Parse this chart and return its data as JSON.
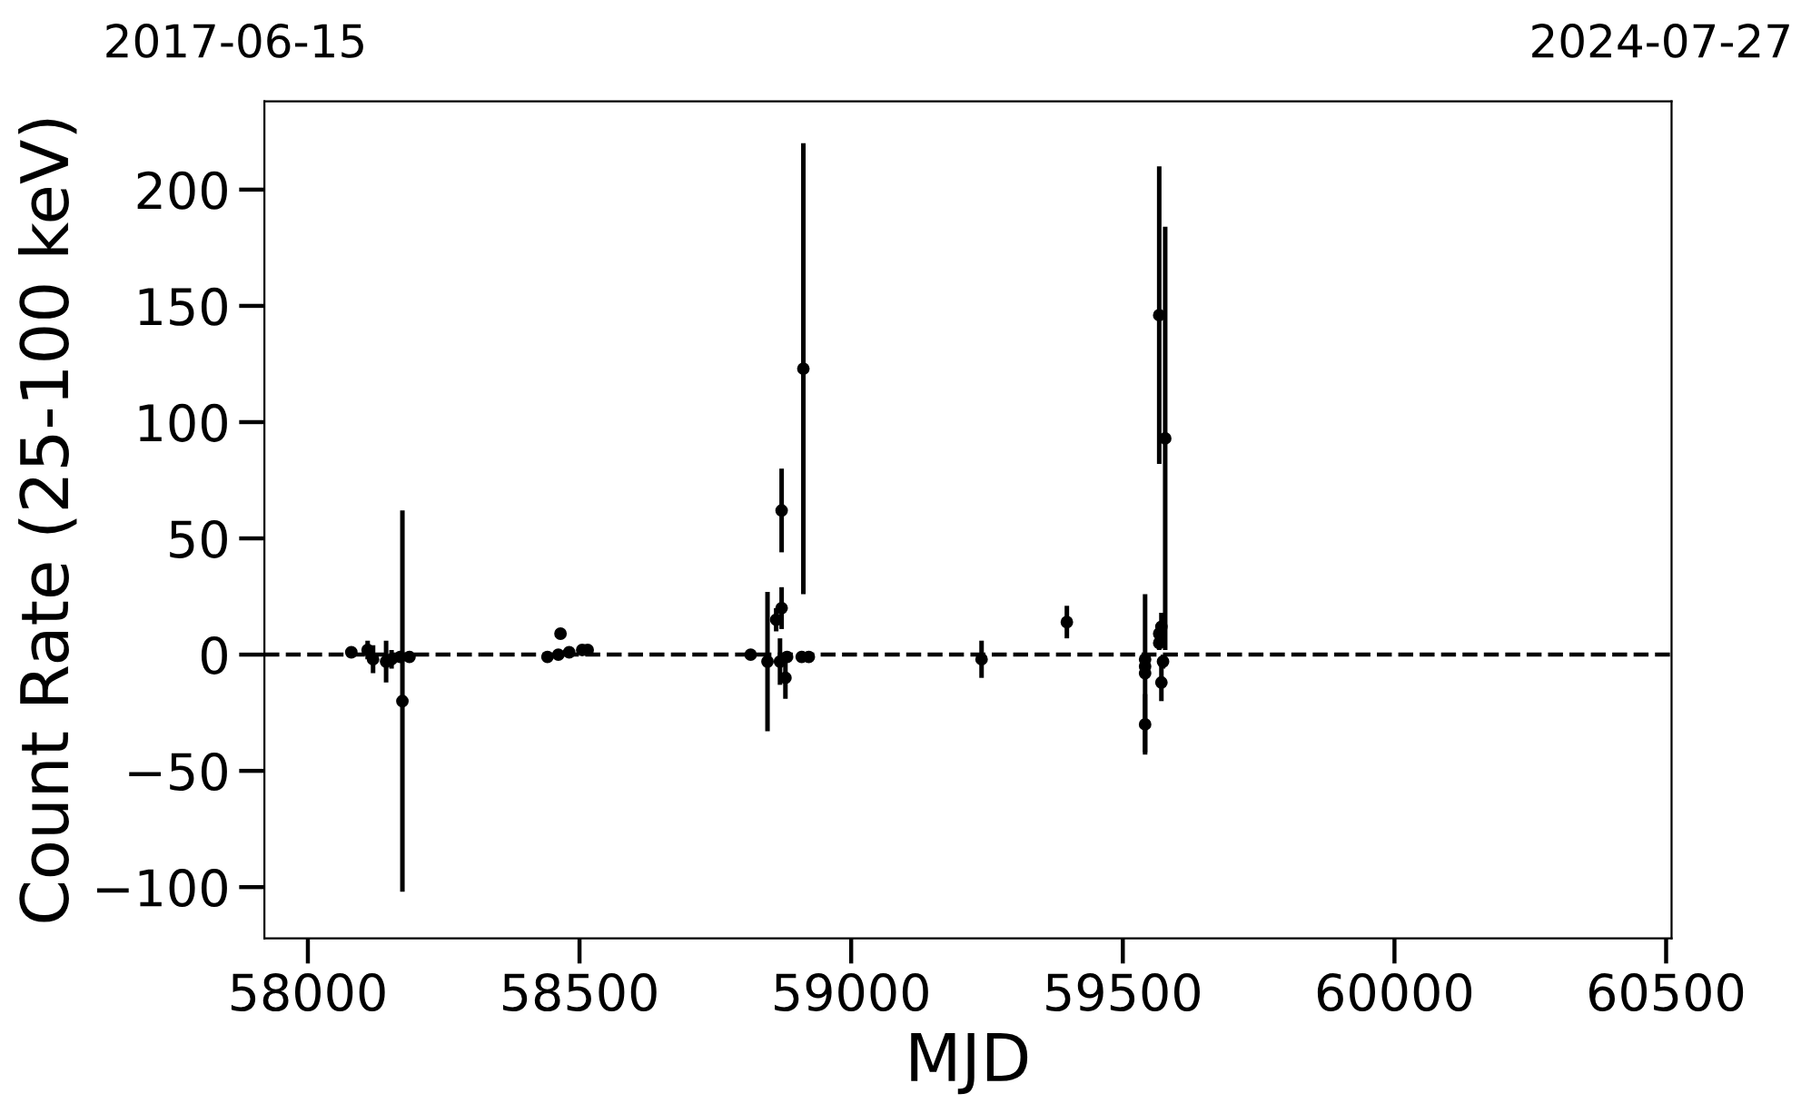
{
  "chart_data": {
    "type": "scatter",
    "xlabel": "MJD",
    "ylabel": "Count Rate (25-100 keV)",
    "annotations": [
      "2017-06-15",
      "2024-07-27"
    ],
    "x": [
      58080,
      58110,
      58120,
      58144,
      58154,
      58170,
      58174,
      58187,
      58441,
      58461,
      58465,
      58481,
      58505,
      58515,
      58815,
      58846,
      58862,
      58872,
      58872,
      58869,
      58879,
      58882,
      58909,
      58912,
      58922,
      59240,
      59397,
      59541,
      59541,
      59541,
      59541,
      59567,
      59567,
      59567,
      59571,
      59571,
      59574,
      59578
    ],
    "values": [
      1,
      2,
      -2,
      -3,
      -2,
      -1,
      -20,
      -1,
      -1,
      0,
      9,
      1,
      2,
      2,
      0,
      -3,
      15,
      20,
      62,
      -3,
      -10,
      -1,
      -1,
      123,
      -1,
      -2,
      14,
      -2,
      -5,
      -8,
      -30,
      146,
      9,
      5,
      12,
      -12,
      -3,
      93
    ],
    "errors": [
      1,
      4,
      6,
      9,
      4,
      1,
      82,
      1,
      1,
      1,
      1,
      1,
      1,
      1,
      1,
      30,
      5,
      9,
      18,
      10,
      9,
      1,
      1,
      97,
      1,
      8,
      7,
      2,
      2,
      34,
      13,
      64,
      4,
      3,
      6,
      8,
      3,
      91
    ],
    "color": "#000000",
    "marker": "circle",
    "grid": false,
    "xlim": [
      57920,
      60510
    ],
    "xticks": [
      58000,
      58500,
      59000,
      59500,
      60000,
      60500
    ],
    "ylim": [
      -122,
      238
    ],
    "yticks": [
      -100,
      -50,
      0,
      50,
      100,
      150,
      200
    ],
    "ref_lines": [
      {
        "axis": "y",
        "value": 0,
        "label": null,
        "color": "#000000",
        "line_style": "dashed"
      }
    ]
  }
}
